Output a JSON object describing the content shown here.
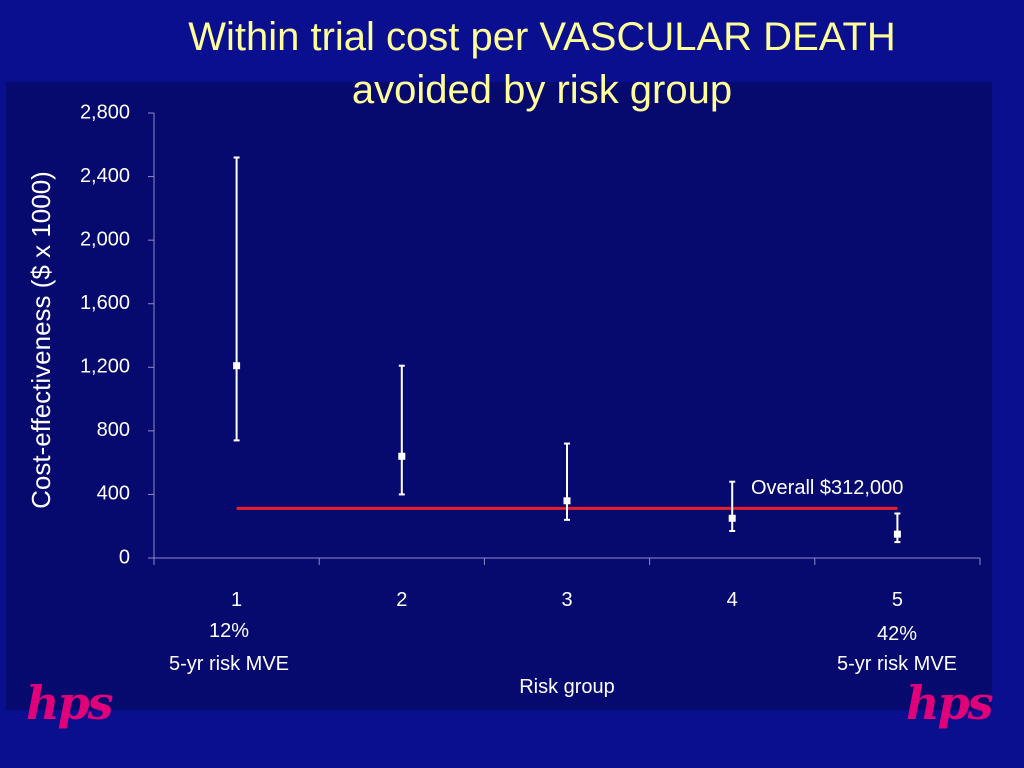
{
  "title_line1": "Within trial cost per VASCULAR DEATH",
  "title_line2": "avoided by risk group",
  "logo_text": "hps",
  "colors": {
    "background": "#0a0f8f",
    "plot_panel": "#06096e",
    "title": "#ffff99",
    "reference_line": "#e8202a",
    "markers": "#ffffff",
    "logo": "#e0007a"
  },
  "chart_data": {
    "type": "scatter",
    "xlabel": "Risk group",
    "ylabel": "Cost-effectiveness ($ x 1000)",
    "categories": [
      "1",
      "2",
      "3",
      "4",
      "5"
    ],
    "ylim": [
      0,
      2800
    ],
    "yticks": [
      0,
      400,
      800,
      1200,
      1600,
      2000,
      2400,
      2800
    ],
    "ytick_labels": [
      "0",
      "400",
      "800",
      "1,200",
      "1,600",
      "2,000",
      "2,400",
      "2,800"
    ],
    "points": [
      {
        "x": "1",
        "y": 1210,
        "lower": 740,
        "upper": 2520
      },
      {
        "x": "2",
        "y": 640,
        "lower": 400,
        "upper": 1210
      },
      {
        "x": "3",
        "y": 360,
        "lower": 240,
        "upper": 720
      },
      {
        "x": "4",
        "y": 250,
        "lower": 170,
        "upper": 480
      },
      {
        "x": "5",
        "y": 150,
        "lower": 100,
        "upper": 280
      }
    ],
    "reference_line": {
      "value": 312,
      "label": "Overall $312,000"
    },
    "annotations": {
      "group1_pct": "12%",
      "group1_desc": "5-yr risk MVE",
      "group5_pct": "42%",
      "group5_desc": "5-yr risk MVE"
    },
    "grid": false,
    "legend": "none"
  }
}
